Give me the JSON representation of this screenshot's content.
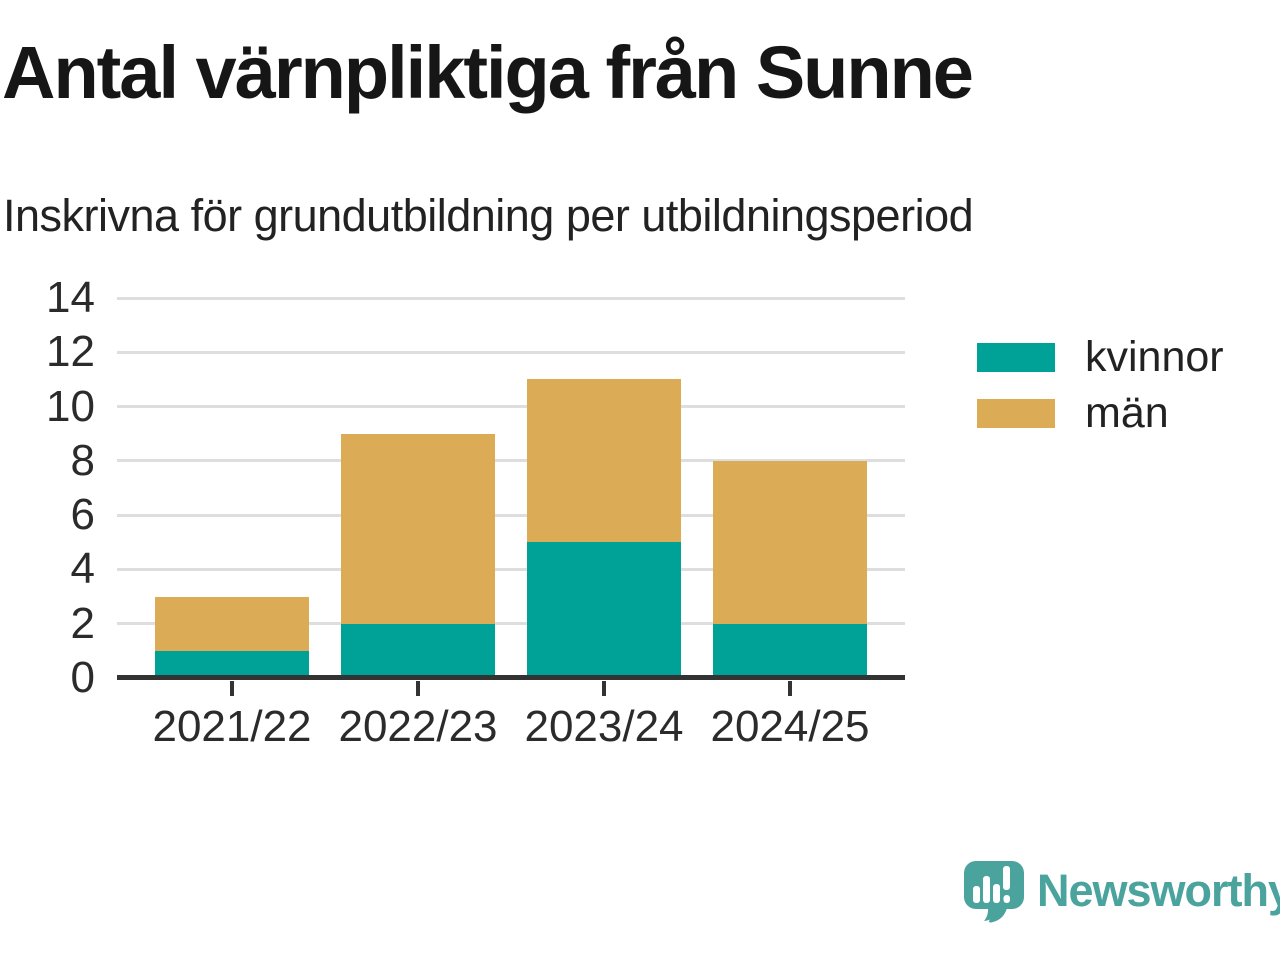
{
  "chart_data": {
    "type": "bar",
    "stacked": true,
    "title": "Antal värnpliktiga från Sunne",
    "subtitle": "Inskrivna för grundutbildning per utbildningsperiod",
    "categories": [
      "2021/22",
      "2022/23",
      "2023/24",
      "2024/25"
    ],
    "series": [
      {
        "name": "kvinnor",
        "color": "#00A196",
        "values": [
          1,
          2,
          5,
          2
        ]
      },
      {
        "name": "män",
        "color": "#DCAB55",
        "values": [
          2,
          7,
          6,
          6
        ]
      }
    ],
    "stack_totals": [
      3,
      9,
      11,
      8
    ],
    "ylim": [
      0,
      14
    ],
    "yticks": [
      0,
      2,
      4,
      6,
      8,
      10,
      12,
      14
    ],
    "xlabel": "",
    "ylabel": "",
    "grid": "horizontal",
    "legend_position": "right"
  },
  "branding": {
    "wordmark": "Newsworthy",
    "logo_icon": "speech-bubble-bar-chart-icon",
    "brand_color": "#4AA39C"
  },
  "colors": {
    "axis_line": "#333333",
    "gridline": "#DEDEDE",
    "text": "#222222",
    "title_text": "#161616"
  }
}
